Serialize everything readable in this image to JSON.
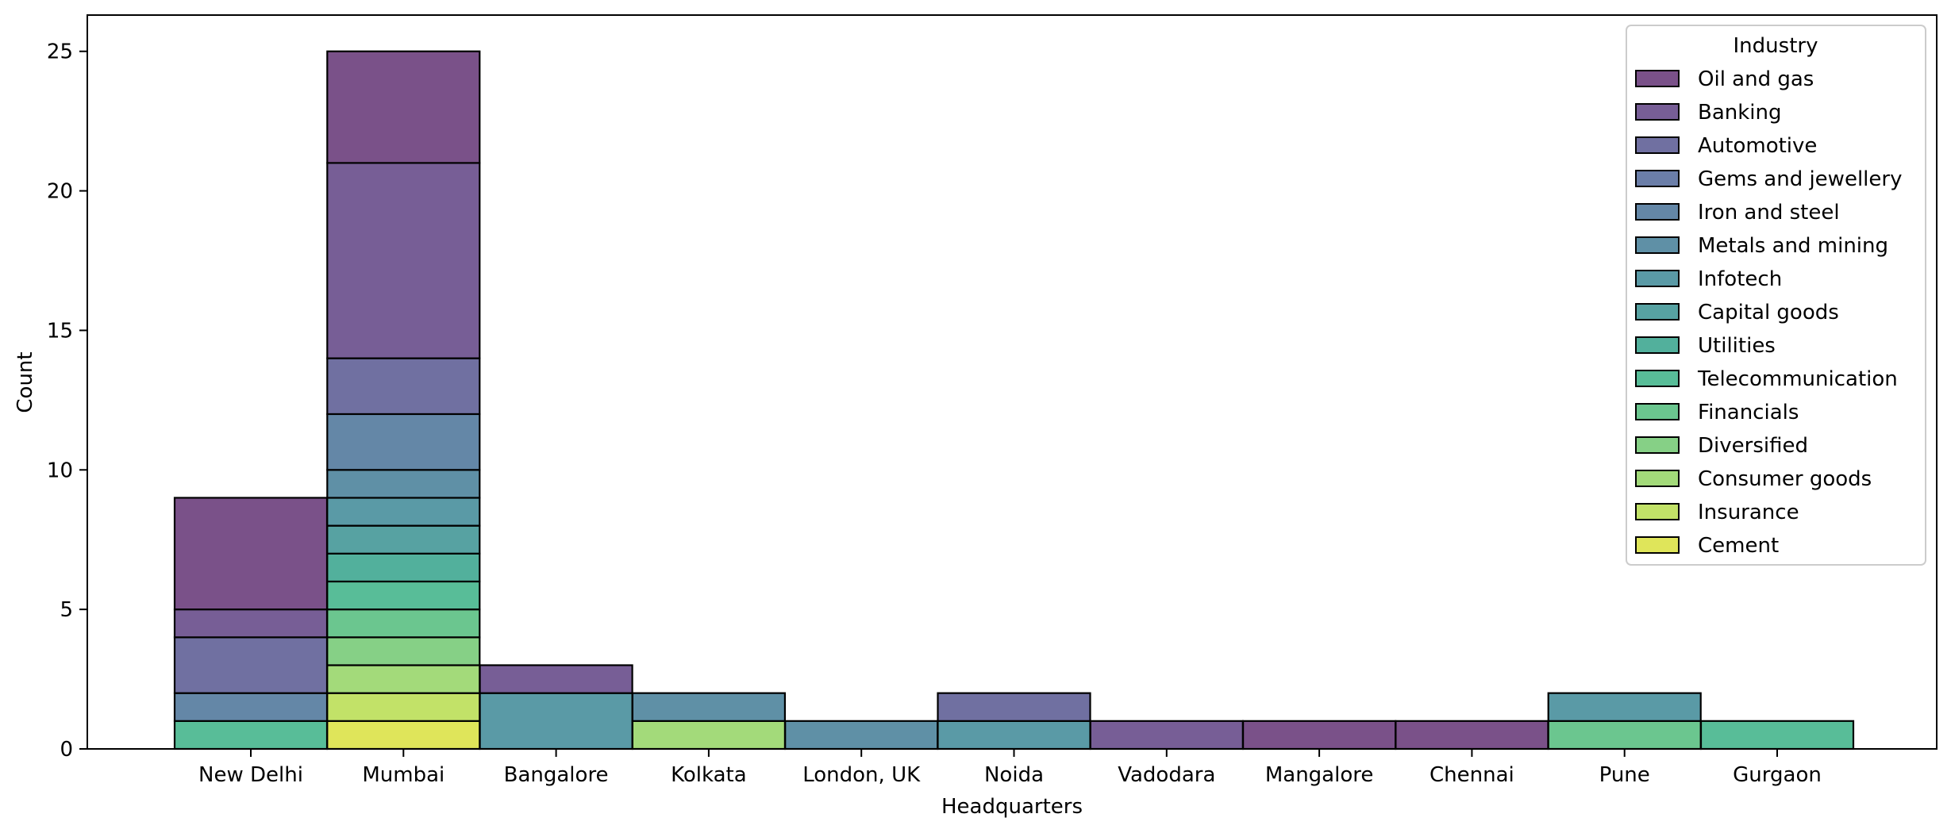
{
  "chart_data": {
    "type": "bar",
    "stacked": true,
    "xlabel": "Headquarters",
    "ylabel": "Count",
    "ylim": [
      0,
      26.3
    ],
    "yticks": [
      0,
      5,
      10,
      15,
      20,
      25
    ],
    "categories": [
      "New Delhi",
      "Mumbai",
      "Bangalore",
      "Kolkata",
      "London, UK",
      "Noida",
      "Vadodara",
      "Mangalore",
      "Chennai",
      "Pune",
      "Gurgaon"
    ],
    "grid": false,
    "legend": {
      "title": "Industry",
      "placement": "top-right"
    },
    "series": [
      {
        "name": "Oil and gas",
        "color": "#7a5189",
        "values": [
          4,
          4,
          0,
          0,
          0,
          0,
          0,
          1,
          1,
          0,
          0
        ]
      },
      {
        "name": "Banking",
        "color": "#775e96",
        "values": [
          1,
          7,
          1,
          0,
          0,
          0,
          1,
          0,
          0,
          0,
          0
        ]
      },
      {
        "name": "Automotive",
        "color": "#7070a1",
        "values": [
          2,
          2,
          0,
          0,
          0,
          1,
          0,
          0,
          0,
          0,
          0
        ]
      },
      {
        "name": "Gems and jewellery",
        "color": "#6b7ea8",
        "values": [
          0,
          0,
          0,
          0,
          0,
          0,
          0,
          0,
          0,
          0,
          0
        ]
      },
      {
        "name": "Iron and steel",
        "color": "#6487a7",
        "values": [
          1,
          2,
          0,
          0,
          0,
          0,
          0,
          0,
          0,
          0,
          0
        ]
      },
      {
        "name": "Metals and mining",
        "color": "#5f90a6",
        "values": [
          0,
          1,
          0,
          1,
          1,
          0,
          0,
          0,
          0,
          0,
          0
        ]
      },
      {
        "name": "Infotech",
        "color": "#5a9aa6",
        "values": [
          0,
          1,
          2,
          0,
          0,
          1,
          0,
          0,
          0,
          1,
          0
        ]
      },
      {
        "name": "Capital goods",
        "color": "#57a2a2",
        "values": [
          0,
          1,
          0,
          0,
          0,
          0,
          0,
          0,
          0,
          0,
          0
        ]
      },
      {
        "name": "Utilities",
        "color": "#52b09c",
        "values": [
          0,
          1,
          0,
          0,
          0,
          0,
          0,
          0,
          0,
          0,
          0
        ]
      },
      {
        "name": "Telecommunication",
        "color": "#58bd98",
        "values": [
          1,
          1,
          0,
          0,
          0,
          0,
          0,
          0,
          0,
          0,
          1
        ]
      },
      {
        "name": "Financials",
        "color": "#6bc68f",
        "values": [
          0,
          1,
          0,
          0,
          0,
          0,
          0,
          0,
          0,
          1,
          0
        ]
      },
      {
        "name": "Diversified",
        "color": "#86d086",
        "values": [
          0,
          1,
          0,
          0,
          0,
          0,
          0,
          0,
          0,
          0,
          0
        ]
      },
      {
        "name": "Consumer goods",
        "color": "#a3da7a",
        "values": [
          0,
          1,
          0,
          1,
          0,
          0,
          0,
          0,
          0,
          0,
          0
        ]
      },
      {
        "name": "Insurance",
        "color": "#c2e268",
        "values": [
          0,
          1,
          0,
          0,
          0,
          0,
          0,
          0,
          0,
          0,
          0
        ]
      },
      {
        "name": "Cement",
        "color": "#dfe55a",
        "values": [
          0,
          1,
          0,
          0,
          0,
          0,
          0,
          0,
          0,
          0,
          0
        ]
      }
    ]
  }
}
